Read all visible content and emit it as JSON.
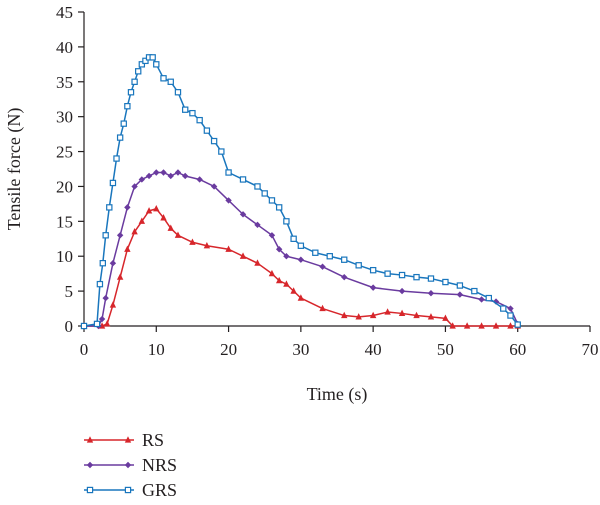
{
  "chart_data": {
    "type": "line",
    "title": "",
    "xlabel": "Time (s)",
    "ylabel": "Tensile force (N)",
    "xlim": [
      0,
      70
    ],
    "ylim": [
      0,
      45
    ],
    "xticks": [
      0,
      10,
      20,
      30,
      40,
      50,
      60,
      70
    ],
    "yticks": [
      0,
      5,
      10,
      15,
      20,
      25,
      30,
      35,
      40,
      45
    ],
    "grid": false,
    "legend_position": "bottom-left",
    "series": [
      {
        "name": "RS",
        "color": "#d7262b",
        "marker": "triangle",
        "x": [
          0,
          2.5,
          3.2,
          4,
          5,
          6,
          7,
          8,
          9,
          10,
          11,
          12,
          13,
          15,
          17,
          20,
          22,
          24,
          26,
          27,
          28,
          29,
          30,
          33,
          36,
          38,
          40,
          42,
          44,
          46,
          48,
          50,
          51,
          53,
          55,
          57,
          59,
          60
        ],
        "values": [
          0,
          0,
          0.3,
          3,
          7,
          11,
          13.5,
          15,
          16.5,
          16.8,
          15.5,
          14,
          13,
          12,
          11.5,
          11,
          10,
          9,
          7.5,
          6.5,
          6,
          5,
          4,
          2.5,
          1.5,
          1.3,
          1.5,
          2,
          1.8,
          1.5,
          1.3,
          1.1,
          0,
          0,
          0,
          0,
          0,
          0
        ]
      },
      {
        "name": "NRS",
        "color": "#6a3b9f",
        "marker": "diamond",
        "x": [
          0,
          2,
          2.5,
          3,
          4,
          5,
          6,
          7,
          8,
          9,
          10,
          11,
          12,
          13,
          14,
          16,
          18,
          20,
          22,
          24,
          26,
          27,
          28,
          30,
          33,
          36,
          40,
          44,
          48,
          52,
          55,
          57,
          59,
          60
        ],
        "values": [
          0,
          0,
          1,
          4,
          9,
          13,
          17,
          20,
          21,
          21.5,
          22,
          22,
          21.5,
          22,
          21.5,
          21,
          20,
          18,
          16,
          14.5,
          13,
          11,
          10,
          9.5,
          8.5,
          7,
          5.5,
          5,
          4.7,
          4.5,
          3.8,
          3.5,
          2.5,
          0.3
        ]
      },
      {
        "name": "GRS",
        "color": "#1976bd",
        "marker": "square",
        "x": [
          0,
          1.8,
          2.2,
          2.6,
          3,
          3.5,
          4,
          4.5,
          5,
          5.5,
          6,
          6.5,
          7,
          7.5,
          8,
          8.5,
          9,
          9.5,
          10,
          11,
          12,
          13,
          14,
          15,
          16,
          17,
          18,
          19,
          20,
          22,
          24,
          25,
          26,
          27,
          28,
          29,
          30,
          32,
          34,
          36,
          38,
          40,
          42,
          44,
          46,
          48,
          50,
          52,
          54,
          56,
          58,
          59,
          60
        ],
        "values": [
          0,
          0.3,
          6,
          9,
          13,
          17,
          20.5,
          24,
          27,
          29,
          31.5,
          33.5,
          35,
          36.5,
          37.5,
          38,
          38.5,
          38.5,
          37.5,
          35.5,
          35,
          33.5,
          31,
          30.5,
          29.5,
          28,
          26.5,
          25,
          22,
          21,
          20,
          19,
          18,
          17,
          15,
          12.5,
          11.5,
          10.5,
          10,
          9.5,
          8.7,
          8,
          7.5,
          7.3,
          7,
          6.8,
          6.3,
          5.8,
          5,
          4,
          2.5,
          1.5,
          0.2
        ]
      }
    ]
  }
}
